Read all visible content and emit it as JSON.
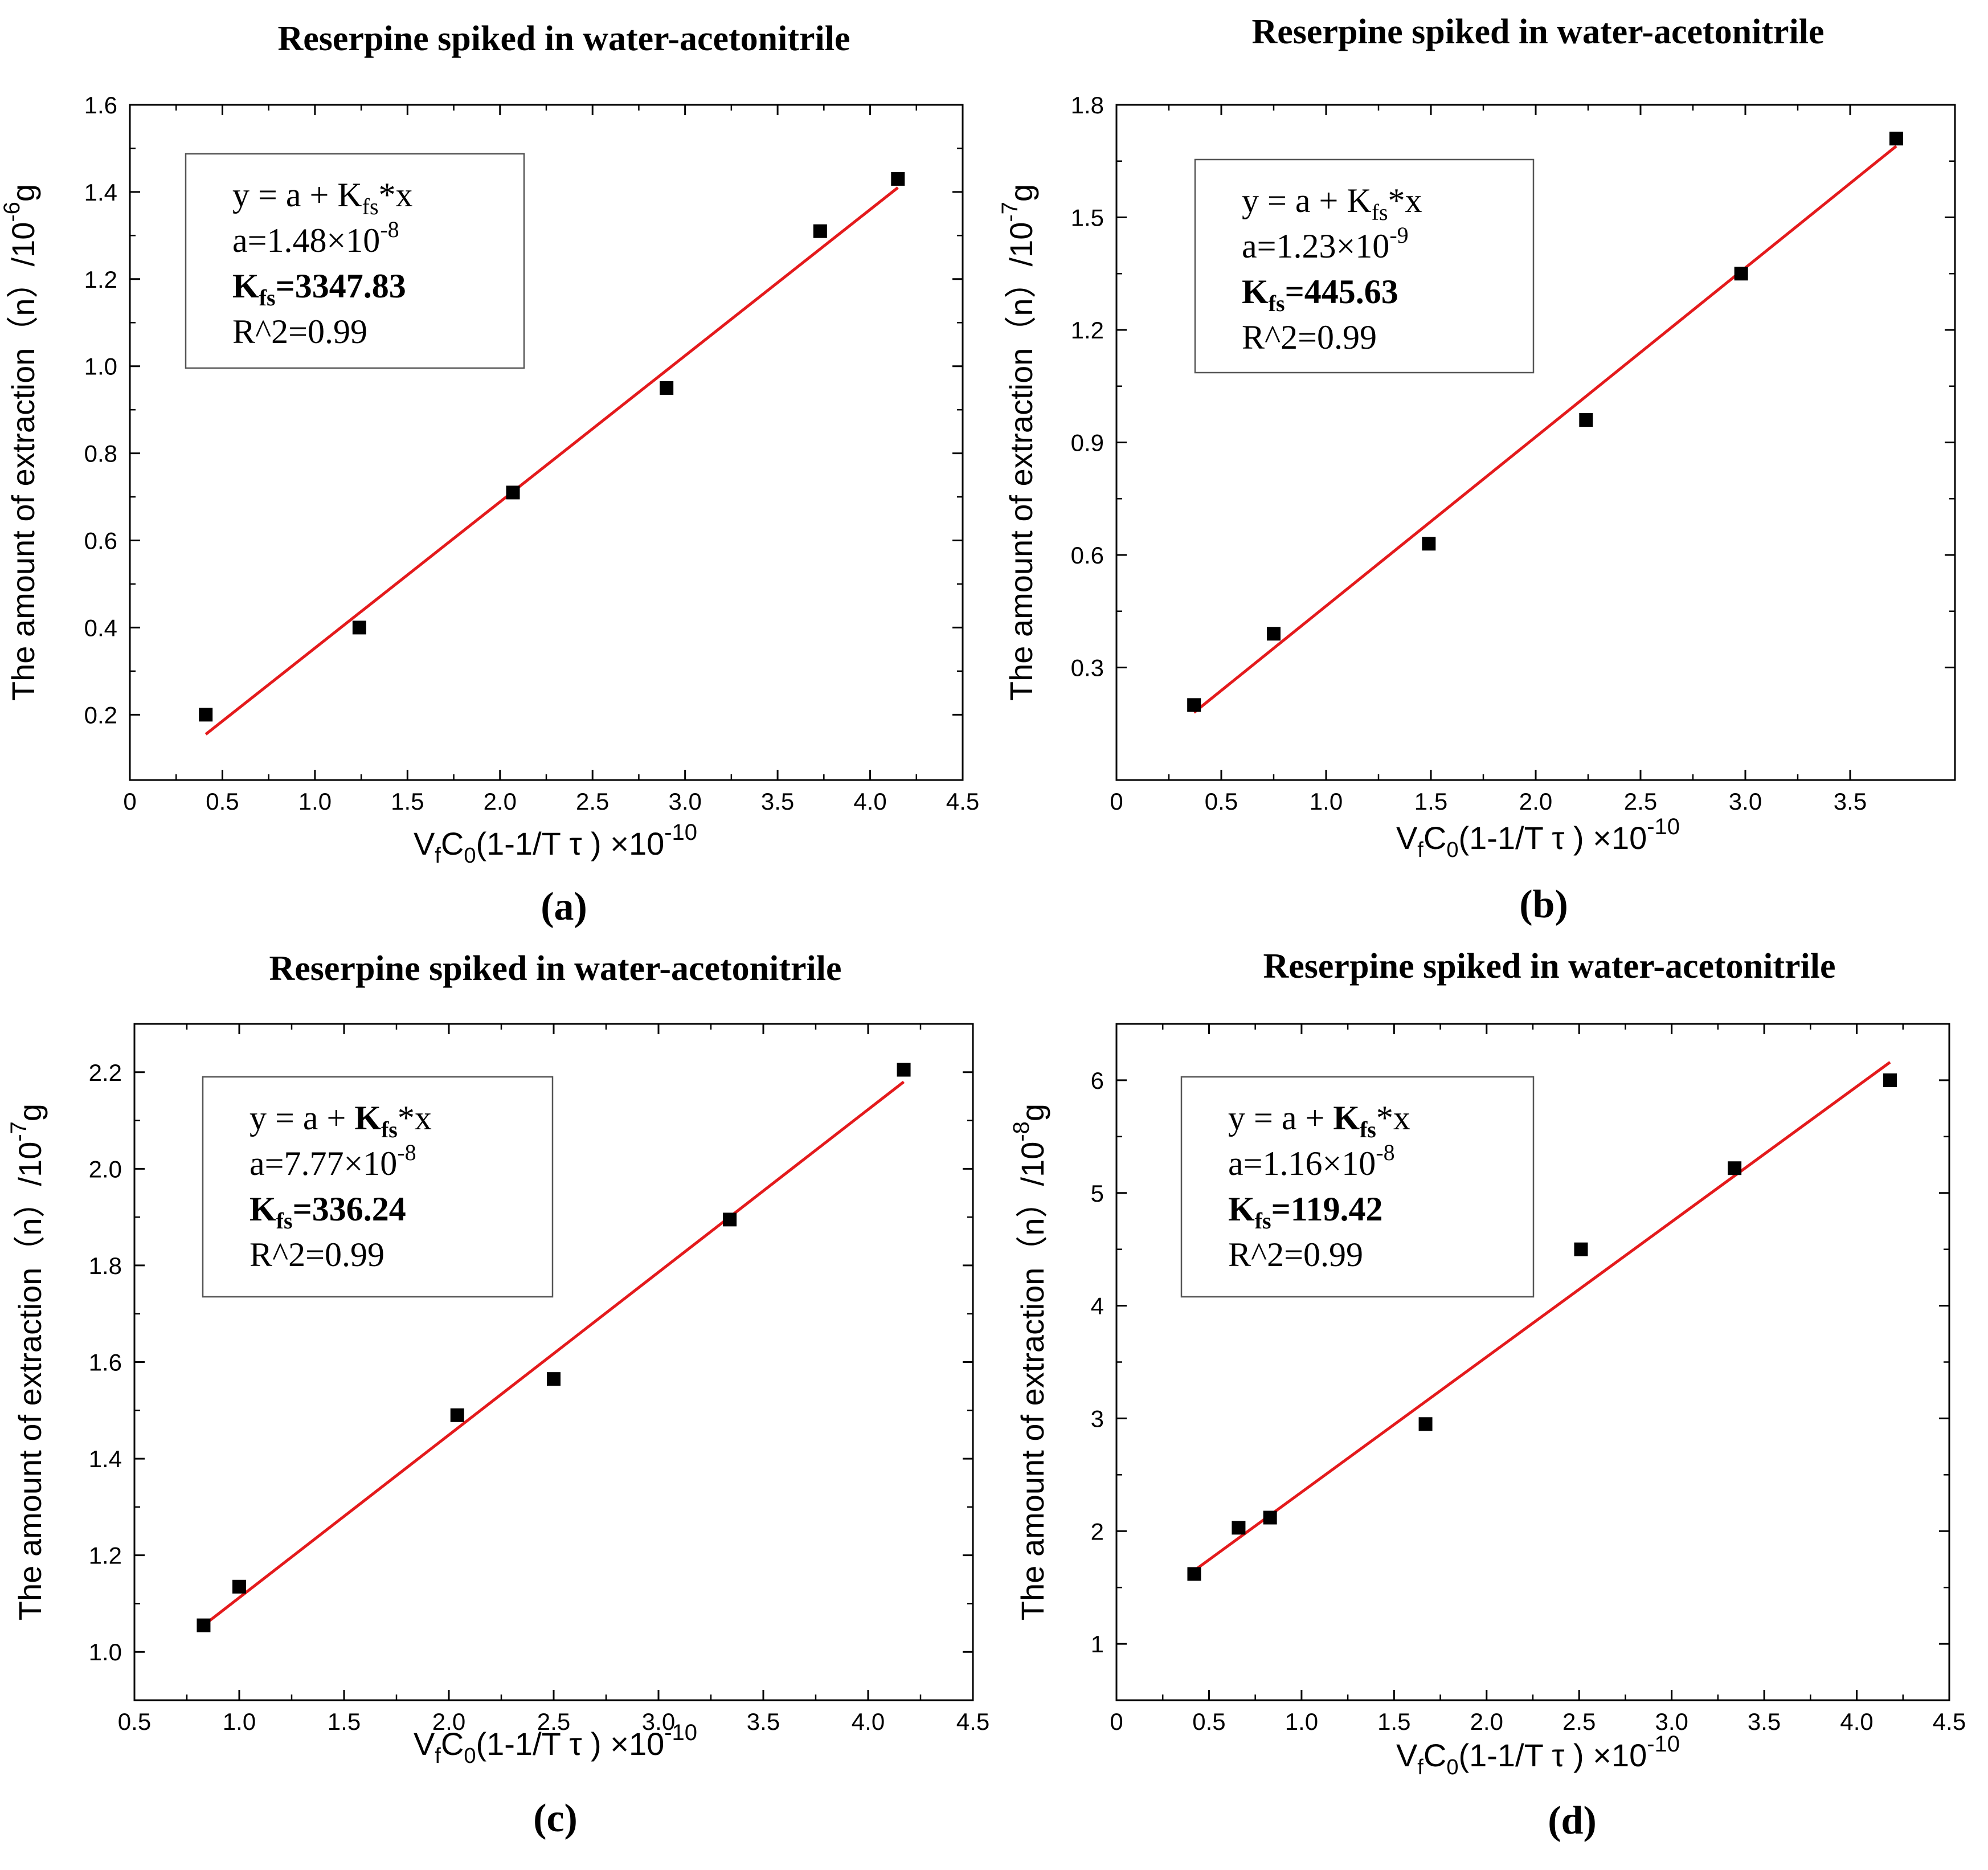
{
  "colors": {
    "fit_line": "#e41a1c",
    "marker": "#000000",
    "axis": "#000000",
    "box_border": "#555555"
  },
  "chart_data": [
    {
      "panel": "(a)",
      "type": "scatter",
      "title": "Reserpine spiked in water-acetonitrile",
      "xlabel": {
        "main": "V",
        "sub1": "f",
        "mid": "C",
        "sub2": "0",
        "tail": "(1-1/T τ ) ×10",
        "exp": "-10"
      },
      "ylabel": {
        "main": "The amount of extraction（n）/10",
        "exp": "-6",
        "unit": "g"
      },
      "xlim": [
        0,
        4.5
      ],
      "ylim": [
        0.05,
        1.6
      ],
      "xticks": [
        "0",
        "0.5",
        "1.0",
        "1.5",
        "2.0",
        "2.5",
        "3.0",
        "3.5",
        "4.0",
        "4.5"
      ],
      "xtick_values": [
        0,
        0.5,
        1.0,
        1.5,
        2.0,
        2.5,
        3.0,
        3.5,
        4.0,
        4.5
      ],
      "yticks": [
        "0.2",
        "0.4",
        "0.6",
        "0.8",
        "1.0",
        "1.2",
        "1.4",
        "1.6"
      ],
      "ytick_values": [
        0.2,
        0.4,
        0.6,
        0.8,
        1.0,
        1.2,
        1.4,
        1.6
      ],
      "points": {
        "x": [
          0.41,
          1.24,
          2.07,
          2.9,
          3.73,
          4.15
        ],
        "y": [
          0.2,
          0.4,
          0.71,
          0.95,
          1.31,
          1.43
        ]
      },
      "fit": {
        "x": [
          0.41,
          4.15
        ],
        "y": [
          0.155,
          1.41
        ]
      },
      "equation": {
        "line1": "y = a + K",
        "line1_sub": "fs",
        "line1_tail": "*x",
        "a_label": "a=",
        "a_value": "1.48×10",
        "a_exp": "-8",
        "k_label": "K",
        "k_sub": "fs",
        "k_value": "=3347.83",
        "r2": "R^2=0.99",
        "k_bold_in_eq": false
      }
    },
    {
      "panel": "(b)",
      "type": "scatter",
      "title": "Reserpine spiked in water-acetonitrile",
      "xlabel": {
        "main": "V",
        "sub1": "f",
        "mid": "C",
        "sub2": "0",
        "tail": "(1-1/T τ ) ×10",
        "exp": "-10"
      },
      "ylabel": {
        "main": "The amount of extraction（n）/10",
        "exp": "-7",
        "unit": "g"
      },
      "xlim": [
        0,
        4.0
      ],
      "ylim": [
        0.0,
        1.8
      ],
      "xticks": [
        "0",
        "0.5",
        "1.0",
        "1.5",
        "2.0",
        "2.5",
        "3.0",
        "3.5"
      ],
      "xtick_values": [
        0,
        0.5,
        1.0,
        1.5,
        2.0,
        2.5,
        3.0,
        3.5
      ],
      "yticks": [
        "0.3",
        "0.6",
        "0.9",
        "1.2",
        "1.5",
        "1.8"
      ],
      "ytick_values": [
        0.3,
        0.6,
        0.9,
        1.2,
        1.5,
        1.8
      ],
      "points": {
        "x": [
          0.37,
          0.75,
          1.49,
          2.24,
          2.98,
          3.72
        ],
        "y": [
          0.2,
          0.39,
          0.63,
          0.96,
          1.35,
          1.71
        ]
      },
      "fit": {
        "x": [
          0.37,
          3.72
        ],
        "y": [
          0.18,
          1.69
        ]
      },
      "equation": {
        "line1": "y = a + K",
        "line1_sub": "fs",
        "line1_tail": "*x",
        "a_label": "a=",
        "a_value": "1.23×10",
        "a_exp": "-9",
        "k_label": "K",
        "k_sub": "fs",
        "k_value": "=445.63",
        "r2": "R^2=0.99",
        "k_bold_in_eq": false
      }
    },
    {
      "panel": "(c)",
      "type": "scatter",
      "title": "Reserpine spiked in water-acetonitrile",
      "xlabel": {
        "main": "V",
        "sub1": "f",
        "mid": "C",
        "sub2": "0",
        "tail": "(1-1/T τ ) ×10",
        "exp": "-10"
      },
      "ylabel": {
        "main": "The amount of extraction（n）/10",
        "exp": "-7",
        "unit": "g"
      },
      "xlim": [
        0.5,
        4.5
      ],
      "ylim": [
        0.9,
        2.3
      ],
      "xticks": [
        "0.5",
        "1.0",
        "1.5",
        "2.0",
        "2.5",
        "3.0",
        "3.5",
        "4.0",
        "4.5"
      ],
      "xtick_values": [
        0.5,
        1.0,
        1.5,
        2.0,
        2.5,
        3.0,
        3.5,
        4.0,
        4.5
      ],
      "yticks": [
        "1.0",
        "1.2",
        "1.4",
        "1.6",
        "1.8",
        "2.0",
        "2.2"
      ],
      "ytick_values": [
        1.0,
        1.2,
        1.4,
        1.6,
        1.8,
        2.0,
        2.2
      ],
      "points": {
        "x": [
          0.83,
          1.0,
          2.04,
          2.5,
          3.34,
          4.17
        ],
        "y": [
          1.055,
          1.135,
          1.49,
          1.565,
          1.895,
          2.205
        ]
      },
      "fit": {
        "x": [
          0.83,
          4.17
        ],
        "y": [
          1.055,
          2.18
        ]
      },
      "equation": {
        "line1": "y = a + K",
        "line1_sub": "fs",
        "line1_tail": "*x",
        "a_label": "a=",
        "a_value": "7.77×10",
        "a_exp": "-8",
        "k_label": "K",
        "k_sub": "fs",
        "k_value": "=336.24",
        "r2": "R^2=0.99",
        "k_bold_in_eq": true
      }
    },
    {
      "panel": "(d)",
      "type": "scatter",
      "title": "Reserpine spiked in water-acetonitrile",
      "xlabel": {
        "main": "V",
        "sub1": "f",
        "mid": "C",
        "sub2": "0",
        "tail": "(1-1/T τ ) ×10",
        "exp": "-10"
      },
      "ylabel": {
        "main": "The amount of extraction（n）/10",
        "exp": "-8",
        "unit": "g"
      },
      "xlim": [
        0,
        4.5
      ],
      "ylim": [
        0.5,
        6.5
      ],
      "xticks": [
        "0",
        "0.5",
        "1.0",
        "1.5",
        "2.0",
        "2.5",
        "3.0",
        "3.5",
        "4.0",
        "4.5"
      ],
      "xtick_values": [
        0,
        0.5,
        1.0,
        1.5,
        2.0,
        2.5,
        3.0,
        3.5,
        4.0,
        4.5
      ],
      "yticks": [
        "1",
        "2",
        "3",
        "4",
        "5",
        "6"
      ],
      "ytick_values": [
        1,
        2,
        3,
        4,
        5,
        6
      ],
      "points": {
        "x": [
          0.42,
          0.66,
          0.83,
          1.67,
          2.51,
          3.34,
          4.18
        ],
        "y": [
          1.62,
          2.03,
          2.12,
          2.95,
          4.5,
          5.22,
          6.0
        ]
      },
      "fit": {
        "x": [
          0.42,
          4.18
        ],
        "y": [
          1.65,
          6.16
        ]
      },
      "equation": {
        "line1": "y = a + K",
        "line1_sub": "fs",
        "line1_tail": "*x",
        "a_label": "a=",
        "a_value": "1.16×10",
        "a_exp": "-8",
        "k_label": "K",
        "k_sub": "fs",
        "k_value": "=119.42",
        "r2": "R^2=0.99",
        "k_bold_in_eq": true
      }
    }
  ]
}
